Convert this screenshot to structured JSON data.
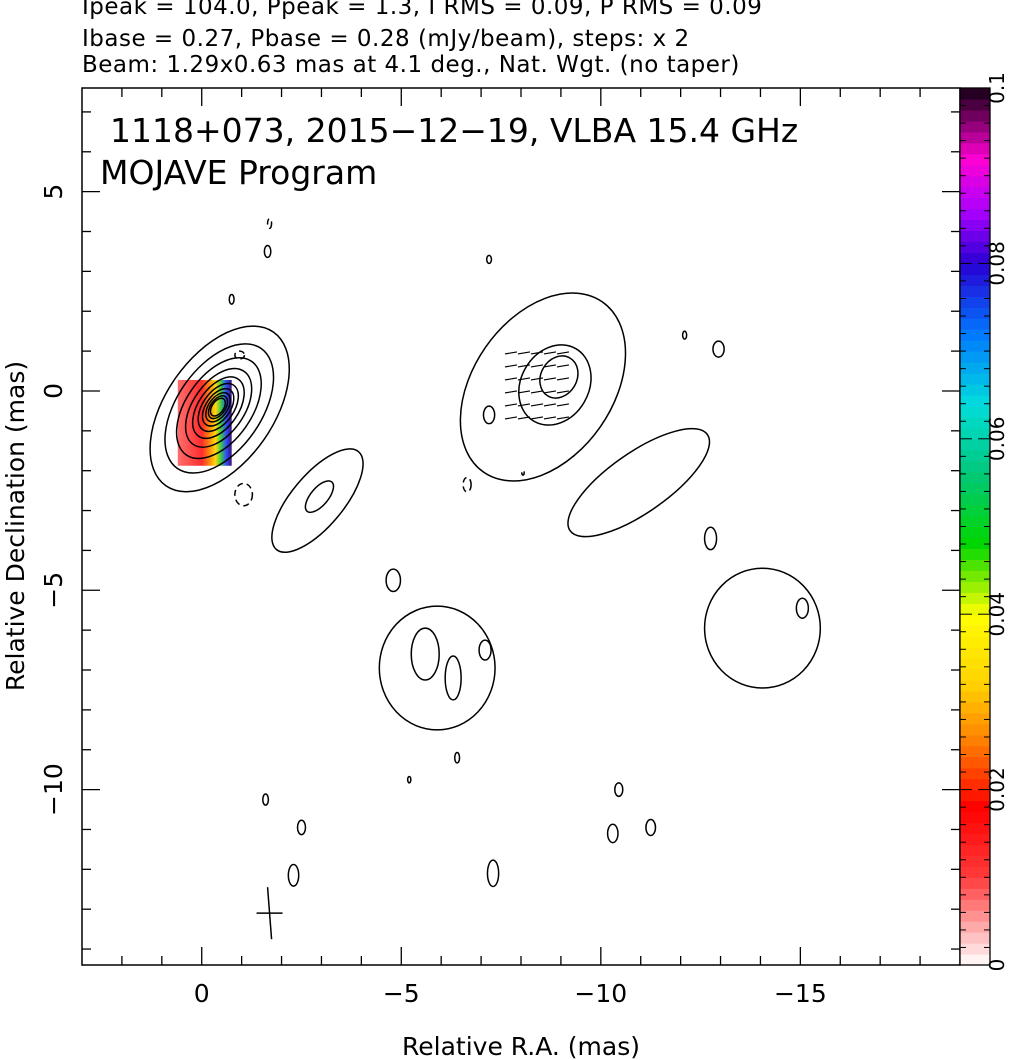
{
  "header": {
    "line1": "Ipeak = 104.0, Ppeak = 1.3, I RMS = 0.09, P RMS = 0.09",
    "line2": "Ibase = 0.27, Pbase = 0.28 (mJy/beam), steps: x 2",
    "line3": "Beam: 1.29x0.63 mas at 4.1 deg., Nat. Wgt. (no taper)"
  },
  "chart_data": {
    "type": "contour",
    "title_line1": "1118+073, 2015−12−19, VLBA 15.4 GHz",
    "title_line2": "MOJAVE Program",
    "xlabel": "Relative R.A. (mas)",
    "ylabel": "Relative Declination (mas)",
    "xlim": [
      3,
      -19
    ],
    "ylim": [
      -14.4,
      7.6
    ],
    "x_ticks": [
      {
        "v": 0,
        "label": "0"
      },
      {
        "v": -5,
        "label": "−5"
      },
      {
        "v": -10,
        "label": "−10"
      },
      {
        "v": -15,
        "label": "−15"
      }
    ],
    "y_ticks": [
      {
        "v": 5,
        "label": "5"
      },
      {
        "v": 0,
        "label": "0"
      },
      {
        "v": -5,
        "label": "−5"
      },
      {
        "v": -10,
        "label": "−10"
      }
    ],
    "colorbar": {
      "min": 0,
      "max": 0.1,
      "ticks": [
        {
          "v": 0,
          "label": "0"
        },
        {
          "v": 0.02,
          "label": "0.02"
        },
        {
          "v": 0.04,
          "label": "0.04"
        },
        {
          "v": 0.06,
          "label": "0.06"
        },
        {
          "v": 0.08,
          "label": "0.08"
        },
        {
          "v": 0.1,
          "label": "0.1"
        }
      ]
    },
    "core": {
      "x": -0.45,
      "y": -0.45,
      "angle_deg": 35,
      "nested_contours": 10
    },
    "beam": {
      "x": -1.7,
      "y": -13.1,
      "major": 1.29,
      "minor": 0.63,
      "pa_deg": 4.1
    },
    "jet_contours": [
      {
        "x": -8.55,
        "y": 0.1,
        "rx": 1.75,
        "ry": 2.6,
        "angle": 35
      },
      {
        "x": -8.85,
        "y": 0.15,
        "rx": 0.85,
        "ry": 1.05,
        "angle": 30
      },
      {
        "x": -8.95,
        "y": 0.35,
        "rx": 0.45,
        "ry": 0.55,
        "angle": 30
      },
      {
        "x": -10.95,
        "y": -2.3,
        "rx": 0.75,
        "ry": 2.1,
        "angle": 55
      },
      {
        "x": -14.05,
        "y": -5.95,
        "rx": 1.45,
        "ry": 1.5,
        "angle": 0
      },
      {
        "x": -5.9,
        "y": -6.95,
        "rx": 1.45,
        "ry": 1.55,
        "angle": 0
      },
      {
        "x": -5.6,
        "y": -6.6,
        "rx": 0.35,
        "ry": 0.65,
        "angle": 0
      },
      {
        "x": -6.3,
        "y": -7.2,
        "rx": 0.2,
        "ry": 0.55,
        "angle": 0
      },
      {
        "x": -2.9,
        "y": -2.75,
        "rx": 0.65,
        "ry": 1.6,
        "angle": 40
      },
      {
        "x": -2.95,
        "y": -2.65,
        "rx": 0.22,
        "ry": 0.48,
        "angle": 40
      }
    ],
    "islands": [
      {
        "x": -0.75,
        "y": 2.3,
        "rx": 0.06,
        "ry": 0.12
      },
      {
        "x": -1.65,
        "y": 3.5,
        "rx": 0.08,
        "ry": 0.15
      },
      {
        "x": -7.2,
        "y": 3.3,
        "rx": 0.06,
        "ry": 0.1
      },
      {
        "x": -12.1,
        "y": 1.4,
        "rx": 0.05,
        "ry": 0.1
      },
      {
        "x": -12.95,
        "y": 1.05,
        "rx": 0.14,
        "ry": 0.2
      },
      {
        "x": -7.2,
        "y": -0.6,
        "rx": 0.14,
        "ry": 0.22
      },
      {
        "x": -12.75,
        "y": -3.7,
        "rx": 0.15,
        "ry": 0.28
      },
      {
        "x": -15.05,
        "y": -5.45,
        "rx": 0.15,
        "ry": 0.25
      },
      {
        "x": -4.8,
        "y": -4.75,
        "rx": 0.18,
        "ry": 0.28
      },
      {
        "x": -7.1,
        "y": -6.5,
        "rx": 0.15,
        "ry": 0.25
      },
      {
        "x": -6.4,
        "y": -9.2,
        "rx": 0.06,
        "ry": 0.13
      },
      {
        "x": -5.2,
        "y": -9.75,
        "rx": 0.04,
        "ry": 0.08
      },
      {
        "x": -10.45,
        "y": -10.0,
        "rx": 0.1,
        "ry": 0.17
      },
      {
        "x": -10.3,
        "y": -11.1,
        "rx": 0.13,
        "ry": 0.23
      },
      {
        "x": -11.25,
        "y": -10.95,
        "rx": 0.12,
        "ry": 0.2
      },
      {
        "x": -1.6,
        "y": -10.25,
        "rx": 0.07,
        "ry": 0.14
      },
      {
        "x": -2.5,
        "y": -10.95,
        "rx": 0.1,
        "ry": 0.18
      },
      {
        "x": -2.3,
        "y": -12.15,
        "rx": 0.13,
        "ry": 0.27
      },
      {
        "x": -7.3,
        "y": -12.1,
        "rx": 0.14,
        "ry": 0.33
      }
    ],
    "dashed_islands": [
      {
        "x": -1.7,
        "y": 4.2,
        "rx": 0.05,
        "ry": 0.12
      },
      {
        "x": -0.95,
        "y": 0.9,
        "rx": 0.12,
        "ry": 0.1
      },
      {
        "x": -1.05,
        "y": -2.6,
        "rx": 0.22,
        "ry": 0.28
      },
      {
        "x": -6.65,
        "y": -2.35,
        "rx": 0.1,
        "ry": 0.18
      },
      {
        "x": -8.05,
        "y": -2.05,
        "rx": 0.03,
        "ry": 0.06
      }
    ],
    "polarization": {
      "color_region": {
        "x": -0.75,
        "y": -0.8,
        "width": 1.35,
        "height": 2.15
      },
      "vectors_region": {
        "x": -8.5,
        "y": -0.1
      }
    }
  }
}
